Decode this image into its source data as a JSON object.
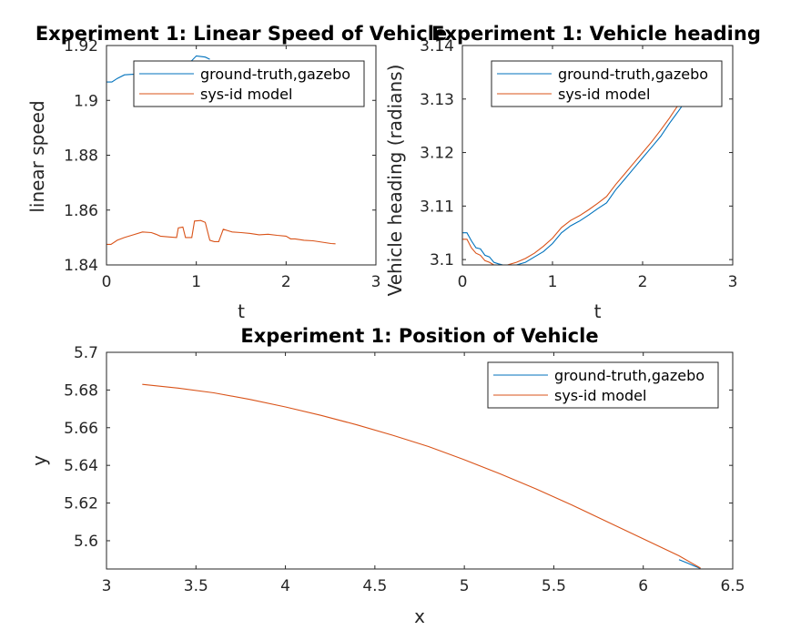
{
  "chart_data": [
    {
      "type": "line",
      "title": "Experiment 1: Linear Speed of Vehicle",
      "xlabel": "t",
      "ylabel": "linear speed",
      "xlim": [
        0,
        3
      ],
      "ylim": [
        1.84,
        1.92
      ],
      "xticks": [
        "0",
        "1",
        "2",
        "3"
      ],
      "yticks": [
        "1.84",
        "1.86",
        "1.88",
        "1.9",
        "1.92"
      ],
      "grid": false,
      "legend_position": "top-right",
      "series": [
        {
          "name": "ground-truth,gazebo",
          "color": "#0072BD",
          "points": [
            [
              0.0,
              1.9067
            ],
            [
              0.06,
              1.9067
            ],
            [
              0.12,
              1.908
            ],
            [
              0.2,
              1.9093
            ],
            [
              0.3,
              1.9095
            ],
            [
              0.4,
              1.9108
            ],
            [
              0.5,
              1.911
            ],
            [
              0.6,
              1.9115
            ],
            [
              0.7,
              1.9118
            ],
            [
              0.8,
              1.9125
            ],
            [
              0.9,
              1.9138
            ],
            [
              0.95,
              1.9145
            ],
            [
              1.0,
              1.9162
            ],
            [
              1.05,
              1.916
            ],
            [
              1.1,
              1.9158
            ],
            [
              1.15,
              1.915
            ]
          ]
        },
        {
          "name": "sys-id model",
          "color": "#D95319",
          "points": [
            [
              0.0,
              1.8475
            ],
            [
              0.05,
              1.8475
            ],
            [
              0.12,
              1.849
            ],
            [
              0.2,
              1.85
            ],
            [
              0.3,
              1.851
            ],
            [
              0.4,
              1.852
            ],
            [
              0.5,
              1.8518
            ],
            [
              0.55,
              1.8512
            ],
            [
              0.6,
              1.8505
            ],
            [
              0.7,
              1.8502
            ],
            [
              0.78,
              1.85
            ],
            [
              0.8,
              1.8535
            ],
            [
              0.85,
              1.8538
            ],
            [
              0.88,
              1.85
            ],
            [
              0.95,
              1.85
            ],
            [
              0.98,
              1.856
            ],
            [
              1.05,
              1.8562
            ],
            [
              1.1,
              1.8555
            ],
            [
              1.15,
              1.849
            ],
            [
              1.2,
              1.8485
            ],
            [
              1.25,
              1.8485
            ],
            [
              1.3,
              1.853
            ],
            [
              1.4,
              1.852
            ],
            [
              1.5,
              1.8518
            ],
            [
              1.6,
              1.8515
            ],
            [
              1.7,
              1.851
            ],
            [
              1.8,
              1.8512
            ],
            [
              1.9,
              1.8508
            ],
            [
              2.0,
              1.8505
            ],
            [
              2.05,
              1.8495
            ],
            [
              2.1,
              1.8495
            ],
            [
              2.2,
              1.849
            ],
            [
              2.3,
              1.8488
            ],
            [
              2.4,
              1.8483
            ],
            [
              2.5,
              1.8478
            ],
            [
              2.55,
              1.8477
            ]
          ]
        }
      ]
    },
    {
      "type": "line",
      "title": "Experiment 1: Vehicle heading",
      "xlabel": "t",
      "ylabel": "Vehicle heading (radians)",
      "xlim": [
        0,
        3
      ],
      "ylim": [
        3.099,
        3.14
      ],
      "xticks": [
        "0",
        "1",
        "2",
        "3"
      ],
      "yticks": [
        "3.1",
        "3.11",
        "3.12",
        "3.13",
        "3.14"
      ],
      "grid": false,
      "legend_position": "top-right",
      "series": [
        {
          "name": "ground-truth,gazebo",
          "color": "#0072BD",
          "points": [
            [
              0.0,
              3.105
            ],
            [
              0.05,
              3.105
            ],
            [
              0.1,
              3.1035
            ],
            [
              0.15,
              3.1022
            ],
            [
              0.2,
              3.102
            ],
            [
              0.25,
              3.1008
            ],
            [
              0.3,
              3.1005
            ],
            [
              0.35,
              3.0995
            ],
            [
              0.4,
              3.0992
            ],
            [
              0.45,
              3.099
            ],
            [
              0.5,
              3.0988
            ],
            [
              0.6,
              3.099
            ],
            [
              0.7,
              3.0995
            ],
            [
              0.8,
              3.1005
            ],
            [
              0.9,
              3.1015
            ],
            [
              1.0,
              3.103
            ],
            [
              1.1,
              3.105
            ],
            [
              1.2,
              3.1063
            ],
            [
              1.3,
              3.1072
            ],
            [
              1.4,
              3.1083
            ],
            [
              1.5,
              3.1095
            ],
            [
              1.6,
              3.1106
            ],
            [
              1.7,
              3.113
            ],
            [
              1.8,
              3.115
            ],
            [
              1.9,
              3.117
            ],
            [
              2.0,
              3.119
            ],
            [
              2.1,
              3.121
            ],
            [
              2.2,
              3.123
            ],
            [
              2.3,
              3.1255
            ],
            [
              2.4,
              3.1278
            ],
            [
              2.45,
              3.129
            ]
          ]
        },
        {
          "name": "sys-id model",
          "color": "#D95319",
          "points": [
            [
              0.0,
              3.1038
            ],
            [
              0.05,
              3.1038
            ],
            [
              0.1,
              3.1022
            ],
            [
              0.15,
              3.1012
            ],
            [
              0.2,
              3.1008
            ],
            [
              0.25,
              3.0998
            ],
            [
              0.3,
              3.0995
            ],
            [
              0.35,
              3.099
            ],
            [
              0.4,
              3.099
            ],
            [
              0.5,
              3.099
            ],
            [
              0.6,
              3.0995
            ],
            [
              0.7,
              3.1002
            ],
            [
              0.8,
              3.1012
            ],
            [
              0.9,
              3.1025
            ],
            [
              1.0,
              3.104
            ],
            [
              1.1,
              3.106
            ],
            [
              1.2,
              3.1073
            ],
            [
              1.3,
              3.1082
            ],
            [
              1.4,
              3.1093
            ],
            [
              1.5,
              3.1105
            ],
            [
              1.6,
              3.1118
            ],
            [
              1.7,
              3.114
            ],
            [
              1.8,
              3.116
            ],
            [
              1.9,
              3.118
            ],
            [
              2.0,
              3.12
            ],
            [
              2.1,
              3.122
            ],
            [
              2.2,
              3.1242
            ],
            [
              2.3,
              3.1265
            ],
            [
              2.38,
              3.1285
            ],
            [
              2.42,
              3.129
            ]
          ]
        }
      ]
    },
    {
      "type": "line",
      "title": "Experiment 1: Position of Vehicle",
      "xlabel": "x",
      "ylabel": "y",
      "xlim": [
        3,
        6.5
      ],
      "ylim": [
        5.585,
        5.7
      ],
      "xticks": [
        "3",
        "3.5",
        "4",
        "4.5",
        "5",
        "5.5",
        "6",
        "6.5"
      ],
      "yticks": [
        "5.6",
        "5.62",
        "5.64",
        "5.66",
        "5.68",
        "5.7"
      ],
      "grid": false,
      "legend_position": "top-right",
      "series": [
        {
          "name": "ground-truth,gazebo",
          "color": "#0072BD",
          "points": [
            [
              6.2,
              5.59
            ],
            [
              6.25,
              5.588
            ],
            [
              6.3,
              5.586
            ],
            [
              6.32,
              5.5852
            ]
          ]
        },
        {
          "name": "sys-id model",
          "color": "#D95319",
          "points": [
            [
              3.2,
              5.683
            ],
            [
              3.4,
              5.681
            ],
            [
              3.6,
              5.6785
            ],
            [
              3.8,
              5.675
            ],
            [
              4.0,
              5.671
            ],
            [
              4.2,
              5.6665
            ],
            [
              4.4,
              5.6615
            ],
            [
              4.6,
              5.656
            ],
            [
              4.8,
              5.65
            ],
            [
              5.0,
              5.643
            ],
            [
              5.2,
              5.6355
            ],
            [
              5.4,
              5.6275
            ],
            [
              5.6,
              5.619
            ],
            [
              5.8,
              5.61
            ],
            [
              6.0,
              5.601
            ],
            [
              6.2,
              5.592
            ],
            [
              6.32,
              5.5855
            ]
          ]
        }
      ]
    }
  ]
}
